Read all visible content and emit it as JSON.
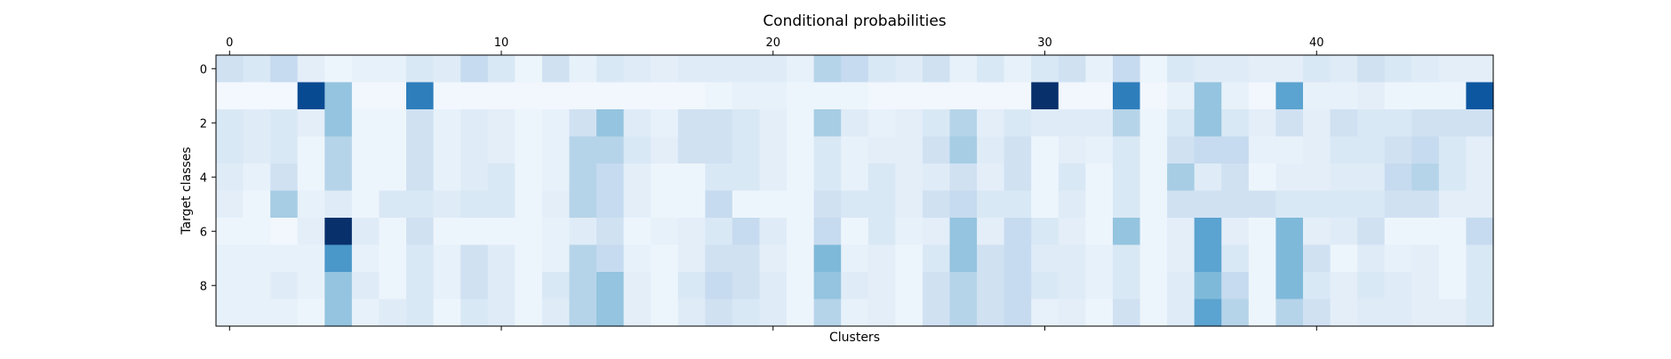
{
  "chart_data": {
    "type": "heatmap",
    "title": "Conditional probabilities",
    "xlabel": "Clusters",
    "ylabel": "Target classes",
    "x_ticks": [
      0,
      10,
      20,
      30,
      40
    ],
    "y_ticks": [
      0,
      2,
      4,
      6,
      8
    ],
    "n_clusters": 47,
    "n_classes": 10,
    "colormap": "Blues",
    "grid": false,
    "values": [
      [
        0.2,
        0.15,
        0.25,
        0.1,
        0.05,
        0.08,
        0.08,
        0.15,
        0.12,
        0.25,
        0.15,
        0.05,
        0.2,
        0.08,
        0.15,
        0.12,
        0.1,
        0.12,
        0.12,
        0.12,
        0.12,
        0.08,
        0.3,
        0.25,
        0.15,
        0.12,
        0.2,
        0.08,
        0.15,
        0.08,
        0.15,
        0.2,
        0.08,
        0.25,
        0.05,
        0.15,
        0.12,
        0.12,
        0.1,
        0.1,
        0.15,
        0.12,
        0.2,
        0.15,
        0.12,
        0.1,
        0.1
      ],
      [
        0.02,
        0.02,
        0.02,
        0.9,
        0.4,
        0.03,
        0.03,
        0.7,
        0.03,
        0.03,
        0.03,
        0.03,
        0.03,
        0.03,
        0.03,
        0.03,
        0.03,
        0.03,
        0.05,
        0.08,
        0.08,
        0.05,
        0.05,
        0.05,
        0.03,
        0.03,
        0.03,
        0.03,
        0.03,
        0.03,
        1.0,
        0.03,
        0.03,
        0.7,
        0.03,
        0.08,
        0.4,
        0.08,
        0.03,
        0.55,
        0.08,
        0.08,
        0.1,
        0.05,
        0.05,
        0.05,
        0.85
      ],
      [
        0.15,
        0.12,
        0.15,
        0.1,
        0.4,
        0.05,
        0.05,
        0.2,
        0.08,
        0.12,
        0.1,
        0.05,
        0.08,
        0.2,
        0.4,
        0.12,
        0.08,
        0.2,
        0.2,
        0.15,
        0.1,
        0.05,
        0.35,
        0.12,
        0.08,
        0.1,
        0.15,
        0.3,
        0.1,
        0.15,
        0.12,
        0.12,
        0.12,
        0.3,
        0.05,
        0.15,
        0.4,
        0.15,
        0.1,
        0.2,
        0.1,
        0.2,
        0.15,
        0.15,
        0.2,
        0.2,
        0.2
      ],
      [
        0.15,
        0.12,
        0.15,
        0.05,
        0.3,
        0.05,
        0.05,
        0.2,
        0.08,
        0.12,
        0.1,
        0.05,
        0.08,
        0.3,
        0.3,
        0.15,
        0.1,
        0.2,
        0.2,
        0.15,
        0.1,
        0.05,
        0.15,
        0.08,
        0.1,
        0.1,
        0.2,
        0.35,
        0.12,
        0.2,
        0.05,
        0.1,
        0.08,
        0.15,
        0.05,
        0.2,
        0.25,
        0.25,
        0.08,
        0.08,
        0.1,
        0.15,
        0.15,
        0.2,
        0.25,
        0.15,
        0.1
      ],
      [
        0.12,
        0.08,
        0.2,
        0.05,
        0.3,
        0.05,
        0.05,
        0.2,
        0.08,
        0.12,
        0.15,
        0.05,
        0.08,
        0.3,
        0.25,
        0.1,
        0.05,
        0.05,
        0.15,
        0.15,
        0.1,
        0.05,
        0.15,
        0.08,
        0.15,
        0.1,
        0.12,
        0.2,
        0.1,
        0.2,
        0.05,
        0.15,
        0.05,
        0.15,
        0.05,
        0.35,
        0.12,
        0.2,
        0.05,
        0.1,
        0.1,
        0.12,
        0.12,
        0.25,
        0.3,
        0.15,
        0.1
      ],
      [
        0.1,
        0.05,
        0.35,
        0.08,
        0.12,
        0.05,
        0.15,
        0.15,
        0.12,
        0.15,
        0.15,
        0.05,
        0.1,
        0.3,
        0.25,
        0.1,
        0.05,
        0.05,
        0.25,
        0.05,
        0.05,
        0.05,
        0.2,
        0.15,
        0.15,
        0.1,
        0.2,
        0.25,
        0.15,
        0.15,
        0.05,
        0.12,
        0.05,
        0.15,
        0.05,
        0.2,
        0.2,
        0.2,
        0.2,
        0.15,
        0.15,
        0.15,
        0.15,
        0.2,
        0.2,
        0.1,
        0.1
      ],
      [
        0.05,
        0.05,
        0.03,
        0.1,
        1.0,
        0.12,
        0.05,
        0.2,
        0.05,
        0.05,
        0.05,
        0.05,
        0.08,
        0.12,
        0.2,
        0.05,
        0.08,
        0.1,
        0.15,
        0.25,
        0.12,
        0.05,
        0.25,
        0.05,
        0.15,
        0.08,
        0.1,
        0.4,
        0.1,
        0.25,
        0.15,
        0.1,
        0.05,
        0.4,
        0.05,
        0.1,
        0.55,
        0.1,
        0.05,
        0.45,
        0.1,
        0.12,
        0.2,
        0.05,
        0.05,
        0.05,
        0.25
      ],
      [
        0.08,
        0.08,
        0.08,
        0.08,
        0.6,
        0.08,
        0.05,
        0.15,
        0.08,
        0.2,
        0.12,
        0.05,
        0.08,
        0.3,
        0.25,
        0.08,
        0.05,
        0.1,
        0.2,
        0.2,
        0.1,
        0.05,
        0.45,
        0.08,
        0.1,
        0.05,
        0.15,
        0.4,
        0.2,
        0.25,
        0.12,
        0.12,
        0.08,
        0.15,
        0.05,
        0.1,
        0.55,
        0.15,
        0.05,
        0.45,
        0.2,
        0.05,
        0.12,
        0.08,
        0.1,
        0.05,
        0.15
      ],
      [
        0.08,
        0.08,
        0.12,
        0.08,
        0.4,
        0.12,
        0.05,
        0.15,
        0.08,
        0.2,
        0.12,
        0.05,
        0.15,
        0.3,
        0.4,
        0.1,
        0.05,
        0.15,
        0.25,
        0.2,
        0.12,
        0.05,
        0.4,
        0.12,
        0.1,
        0.05,
        0.2,
        0.3,
        0.2,
        0.25,
        0.15,
        0.12,
        0.08,
        0.15,
        0.05,
        0.12,
        0.45,
        0.25,
        0.05,
        0.45,
        0.15,
        0.1,
        0.15,
        0.12,
        0.1,
        0.05,
        0.15
      ],
      [
        0.08,
        0.08,
        0.08,
        0.05,
        0.4,
        0.08,
        0.12,
        0.15,
        0.05,
        0.15,
        0.12,
        0.05,
        0.12,
        0.3,
        0.4,
        0.1,
        0.05,
        0.12,
        0.2,
        0.15,
        0.12,
        0.05,
        0.3,
        0.08,
        0.1,
        0.05,
        0.2,
        0.3,
        0.2,
        0.25,
        0.08,
        0.1,
        0.05,
        0.2,
        0.05,
        0.12,
        0.55,
        0.3,
        0.05,
        0.3,
        0.2,
        0.1,
        0.12,
        0.12,
        0.1,
        0.1,
        0.15
      ]
    ]
  }
}
